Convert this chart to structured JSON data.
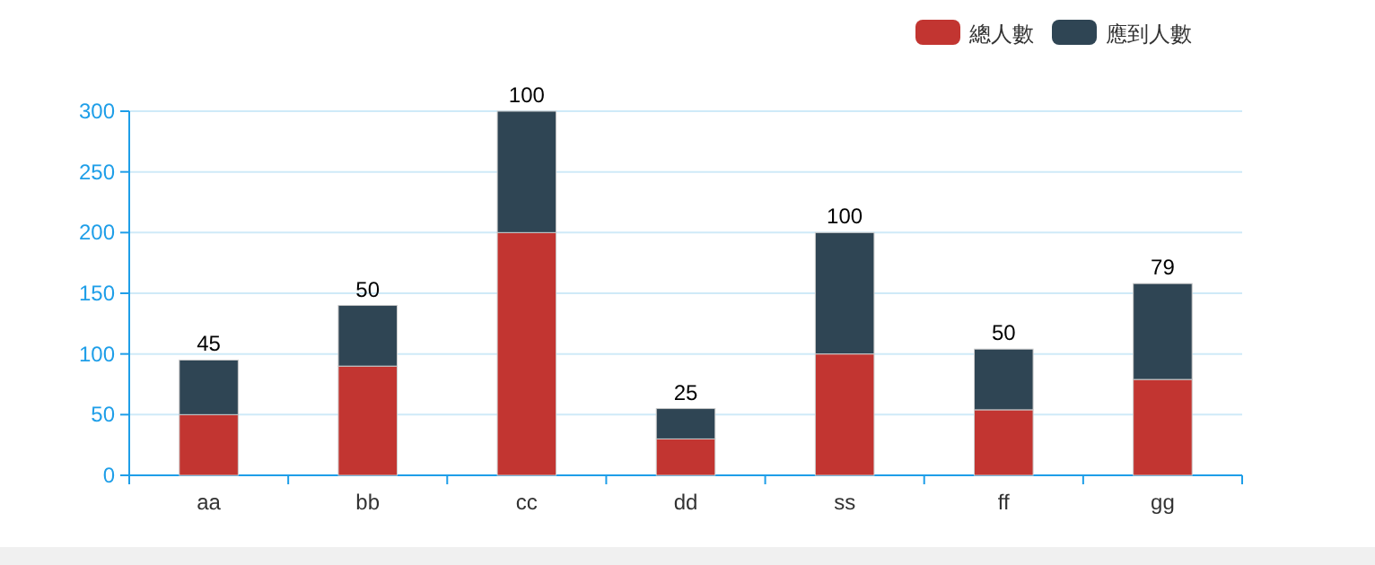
{
  "chart_data": {
    "type": "bar",
    "stacked": true,
    "categories": [
      "aa",
      "bb",
      "cc",
      "dd",
      "ss",
      "ff",
      "gg"
    ],
    "series": [
      {
        "name": "總人數",
        "color": "#c23531",
        "values": [
          50,
          90,
          200,
          30,
          100,
          54,
          79
        ]
      },
      {
        "name": "應到人數",
        "color": "#2f4554",
        "values": [
          45,
          50,
          100,
          25,
          100,
          50,
          79
        ],
        "value_labels": [
          "45",
          "50",
          "100",
          "25",
          "100",
          "50",
          "79"
        ]
      }
    ],
    "ylim": [
      0,
      300
    ],
    "yticks": [
      0,
      50,
      100,
      150,
      200,
      250,
      300
    ],
    "grid": "y",
    "legend": "top right"
  }
}
